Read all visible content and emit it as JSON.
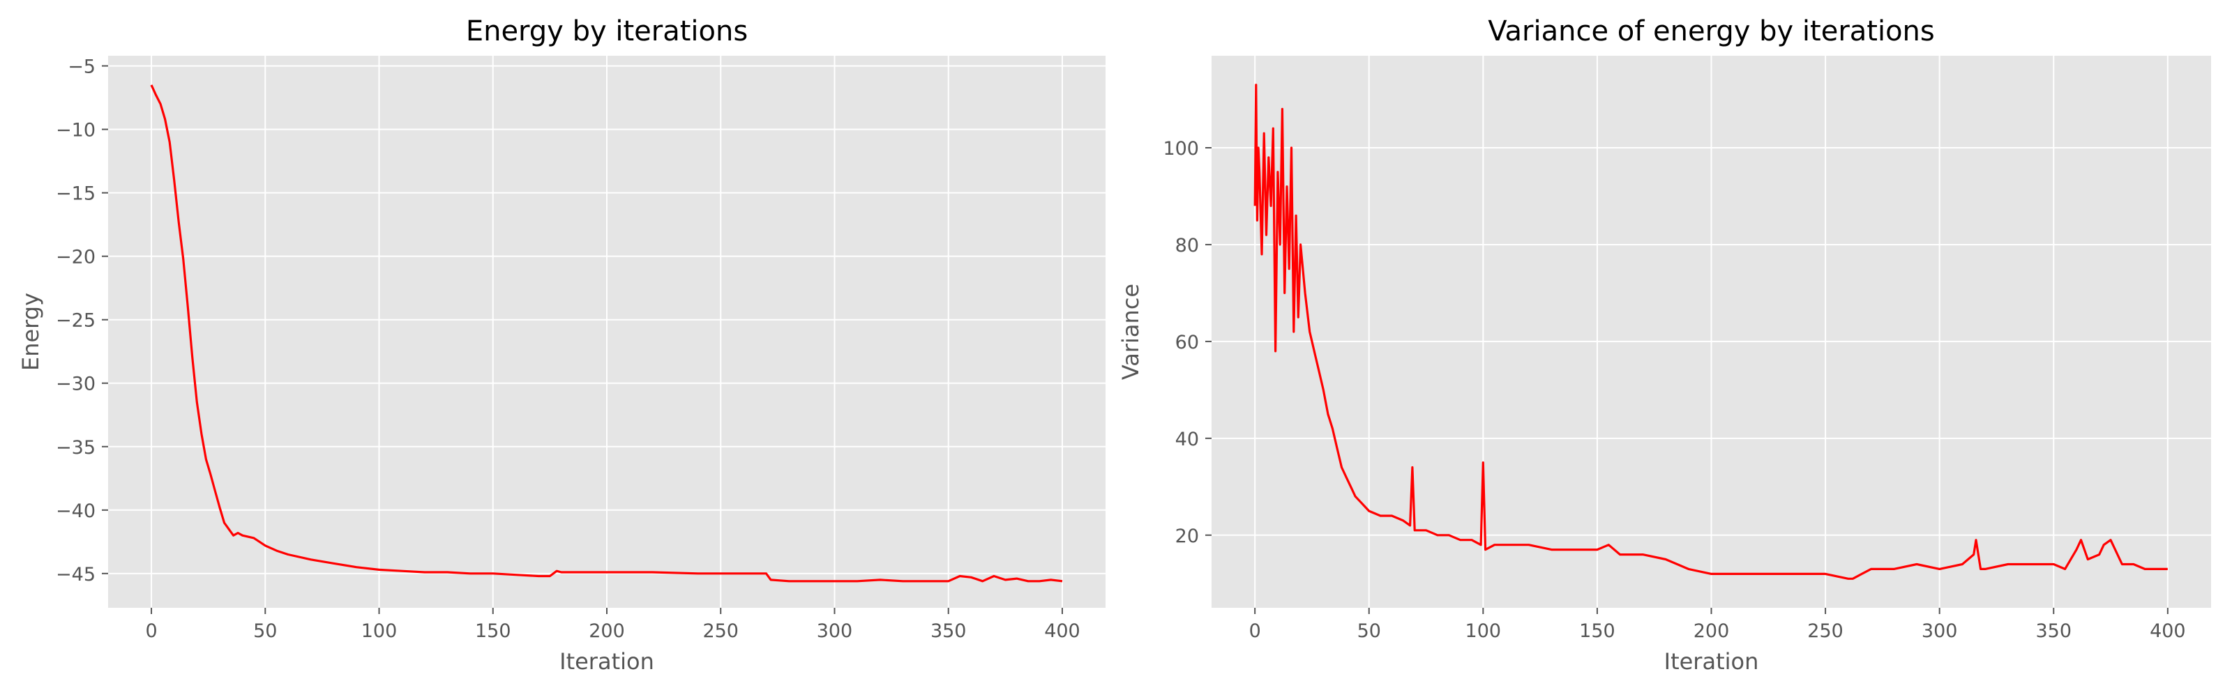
{
  "chart_data": [
    {
      "type": "line",
      "title": "Energy by iterations",
      "xlabel": "Iteration",
      "ylabel": "Energy",
      "xlim": [
        -19,
        419
      ],
      "ylim": [
        -47.7,
        -4.2
      ],
      "xticks": [
        "0",
        "50",
        "100",
        "150",
        "200",
        "250",
        "300",
        "350",
        "400"
      ],
      "yticks": [
        "−5",
        "−10",
        "−15",
        "−20",
        "−25",
        "−30",
        "−35",
        "−40",
        "−45"
      ],
      "xtick_values": [
        0,
        50,
        100,
        150,
        200,
        250,
        300,
        350,
        400
      ],
      "ytick_values": [
        -5,
        -10,
        -15,
        -20,
        -25,
        -30,
        -35,
        -40,
        -45
      ],
      "grid": true,
      "color": "#ff0000",
      "series": [
        {
          "x": [
            0,
            2,
            4,
            6,
            8,
            10,
            12,
            14,
            16,
            18,
            20,
            22,
            24,
            26,
            28,
            30,
            32,
            34,
            36,
            38,
            40,
            45,
            50,
            55,
            60,
            70,
            80,
            90,
            100,
            110,
            120,
            130,
            140,
            150,
            160,
            170,
            175,
            178,
            180,
            200,
            220,
            240,
            260,
            270,
            272,
            280,
            290,
            300,
            310,
            320,
            330,
            340,
            350,
            355,
            360,
            365,
            370,
            375,
            380,
            385,
            390,
            395,
            400
          ],
          "y": [
            -6.5,
            -7.3,
            -8.0,
            -9.2,
            -11.0,
            -14.0,
            -17.3,
            -20.2,
            -24.0,
            -28.0,
            -31.5,
            -34.0,
            -36.0,
            -37.2,
            -38.5,
            -39.8,
            -41.0,
            -41.5,
            -42.0,
            -41.8,
            -42.0,
            -42.2,
            -42.8,
            -43.2,
            -43.5,
            -43.9,
            -44.2,
            -44.5,
            -44.7,
            -44.8,
            -44.9,
            -44.9,
            -45.0,
            -45.0,
            -45.1,
            -45.2,
            -45.2,
            -44.8,
            -44.9,
            -44.9,
            -44.9,
            -45.0,
            -45.0,
            -45.0,
            -45.5,
            -45.6,
            -45.6,
            -45.6,
            -45.6,
            -45.5,
            -45.6,
            -45.6,
            -45.6,
            -45.2,
            -45.3,
            -45.6,
            -45.2,
            -45.5,
            -45.4,
            -45.6,
            -45.6,
            -45.5,
            -45.6
          ]
        }
      ]
    },
    {
      "type": "line",
      "title": "Variance of energy by iterations",
      "xlabel": "Iteration",
      "ylabel": "Variance",
      "xlim": [
        -19,
        419
      ],
      "ylim": [
        5,
        119
      ],
      "xticks": [
        "0",
        "50",
        "100",
        "150",
        "200",
        "250",
        "300",
        "350",
        "400"
      ],
      "yticks": [
        "100",
        "80",
        "60",
        "40",
        "20"
      ],
      "xtick_values": [
        0,
        50,
        100,
        150,
        200,
        250,
        300,
        350,
        400
      ],
      "ytick_values": [
        100,
        80,
        60,
        40,
        20
      ],
      "grid": true,
      "color": "#ff0000",
      "series": [
        {
          "x": [
            0,
            0.5,
            1,
            1.5,
            2,
            3,
            4,
            5,
            6,
            7,
            8,
            9,
            10,
            11,
            12,
            13,
            14,
            15,
            16,
            17,
            18,
            19,
            20,
            22,
            24,
            26,
            28,
            30,
            32,
            34,
            36,
            38,
            40,
            42,
            44,
            46,
            48,
            50,
            55,
            60,
            65,
            68,
            69,
            70,
            75,
            80,
            85,
            90,
            95,
            99,
            100,
            101,
            105,
            110,
            120,
            130,
            140,
            150,
            155,
            160,
            170,
            180,
            190,
            200,
            210,
            220,
            230,
            240,
            250,
            260,
            262,
            270,
            280,
            290,
            300,
            310,
            315,
            316,
            318,
            320,
            330,
            340,
            350,
            355,
            360,
            362,
            365,
            370,
            372,
            375,
            380,
            385,
            390,
            395,
            400
          ],
          "y": [
            88,
            113,
            85,
            100,
            95,
            78,
            103,
            82,
            98,
            88,
            104,
            58,
            95,
            80,
            108,
            70,
            92,
            75,
            100,
            62,
            86,
            65,
            80,
            70,
            62,
            58,
            54,
            50,
            45,
            42,
            38,
            34,
            32,
            30,
            28,
            27,
            26,
            25,
            24,
            24,
            23,
            22,
            34,
            21,
            21,
            20,
            20,
            19,
            19,
            18,
            35,
            17,
            18,
            18,
            18,
            17,
            17,
            17,
            18,
            16,
            16,
            15,
            13,
            12,
            12,
            12,
            12,
            12,
            12,
            11,
            11,
            13,
            13,
            14,
            13,
            14,
            16,
            19,
            13,
            13,
            14,
            14,
            14,
            13,
            17,
            19,
            15,
            16,
            18,
            19,
            14,
            14,
            13,
            13,
            13
          ]
        }
      ]
    }
  ]
}
